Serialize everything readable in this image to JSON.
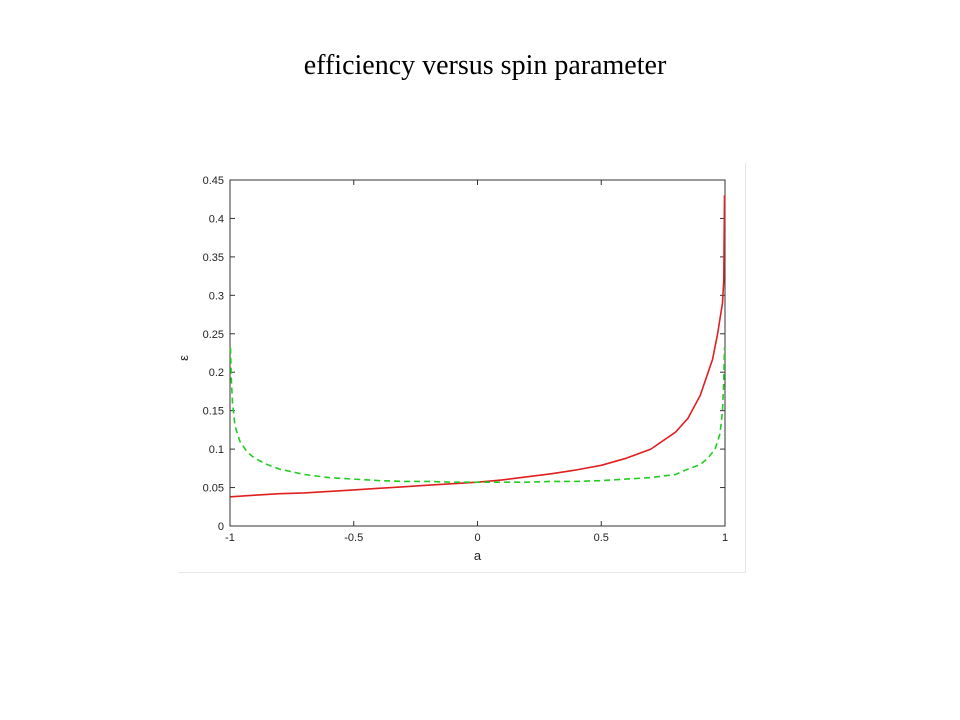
{
  "slide": {
    "title": "efficiency versus spin parameter"
  },
  "chart_data": {
    "type": "line",
    "title": "",
    "xlabel": "a",
    "ylabel": "ε",
    "xlim": [
      -1,
      1
    ],
    "ylim": [
      0,
      0.45
    ],
    "xticks": [
      "-1",
      "-0.5",
      "0",
      "0.5",
      "1"
    ],
    "yticks": [
      "0",
      "0.05",
      "0.1",
      "0.15",
      "0.2",
      "0.25",
      "0.3",
      "0.35",
      "0.4",
      "0.45"
    ],
    "grid": false,
    "legend": "none",
    "series": [
      {
        "color": "#e02020",
        "style": "solid",
        "x": [
          -0.998,
          -0.9,
          -0.8,
          -0.7,
          -0.6,
          -0.5,
          -0.4,
          -0.3,
          -0.2,
          -0.1,
          0,
          0.1,
          0.2,
          0.3,
          0.4,
          0.5,
          0.6,
          0.7,
          0.8,
          0.85,
          0.9,
          0.95,
          0.97,
          0.99,
          0.995,
          0.998
        ],
        "y": [
          0.038,
          0.04,
          0.042,
          0.043,
          0.045,
          0.047,
          0.049,
          0.051,
          0.053,
          0.055,
          0.057,
          0.06,
          0.064,
          0.068,
          0.073,
          0.079,
          0.088,
          0.1,
          0.122,
          0.14,
          0.17,
          0.217,
          0.25,
          0.29,
          0.32,
          0.43
        ]
      },
      {
        "color": "#22cc22",
        "style": "dashed",
        "x": [
          -0.998,
          -0.995,
          -0.99,
          -0.98,
          -0.96,
          -0.93,
          -0.9,
          -0.85,
          -0.8,
          -0.7,
          -0.6,
          -0.5,
          -0.4,
          -0.3,
          -0.2,
          -0.1,
          0,
          0.1,
          0.2,
          0.3,
          0.4,
          0.5,
          0.6,
          0.7,
          0.8,
          0.85,
          0.9,
          0.93,
          0.96,
          0.98,
          0.99,
          0.995,
          0.998
        ],
        "y": [
          0.232,
          0.195,
          0.16,
          0.13,
          0.11,
          0.096,
          0.088,
          0.08,
          0.074,
          0.067,
          0.063,
          0.061,
          0.059,
          0.058,
          0.058,
          0.057,
          0.057,
          0.057,
          0.057,
          0.058,
          0.058,
          0.059,
          0.061,
          0.063,
          0.067,
          0.074,
          0.08,
          0.088,
          0.1,
          0.12,
          0.15,
          0.19,
          0.232
        ]
      }
    ]
  }
}
